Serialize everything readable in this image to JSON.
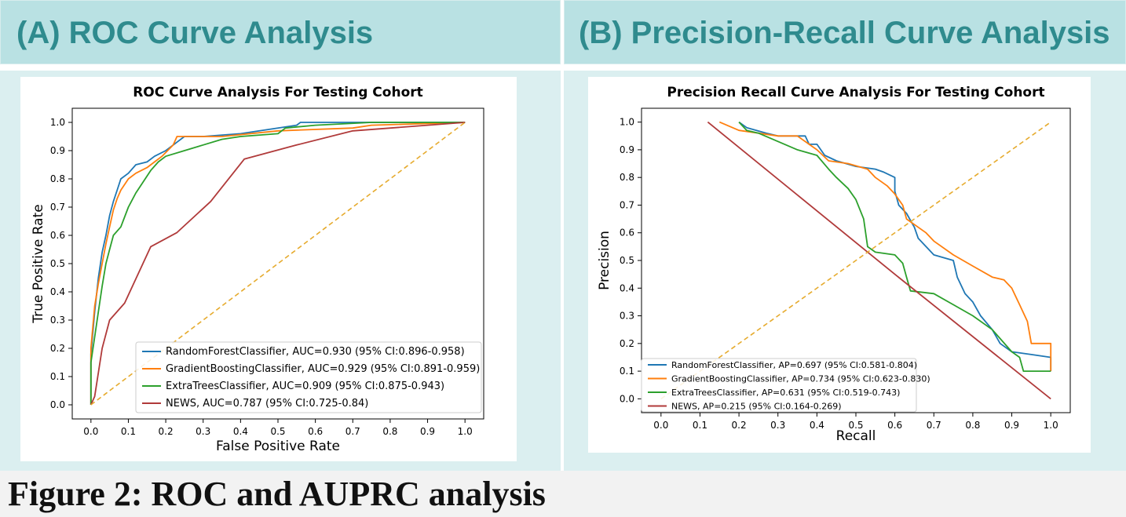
{
  "header": {
    "panel_a": "(A)  ROC Curve Analysis",
    "panel_b": "(B) Precision-Recall Curve Analysis"
  },
  "caption": "Figure 2: ROC and AUPRC analysis",
  "chart_data": [
    {
      "type": "line",
      "title": "ROC Curve Analysis For Testing Cohort",
      "xlabel": "False Positive Rate",
      "ylabel": "True Positive Rate",
      "xlim": [
        -0.05,
        1.05
      ],
      "ylim": [
        -0.05,
        1.05
      ],
      "xticks": [
        0.0,
        0.1,
        0.2,
        0.3,
        0.4,
        0.5,
        0.6,
        0.7,
        0.8,
        0.9,
        1.0
      ],
      "yticks": [
        0.0,
        0.1,
        0.2,
        0.3,
        0.4,
        0.5,
        0.6,
        0.7,
        0.8,
        0.9,
        1.0
      ],
      "tick_format": 1,
      "legend": "lower right",
      "legend_font": 13,
      "series": [
        {
          "name": "RandomForestClassifier, AUC=0.930 (95% CI:0.896-0.958)",
          "color": "#1f77b4",
          "points": [
            [
              0,
              0
            ],
            [
              0,
              0.18
            ],
            [
              0.01,
              0.33
            ],
            [
              0.02,
              0.45
            ],
            [
              0.03,
              0.54
            ],
            [
              0.04,
              0.6
            ],
            [
              0.05,
              0.67
            ],
            [
              0.06,
              0.72
            ],
            [
              0.07,
              0.76
            ],
            [
              0.08,
              0.8
            ],
            [
              0.1,
              0.82
            ],
            [
              0.12,
              0.85
            ],
            [
              0.15,
              0.86
            ],
            [
              0.17,
              0.88
            ],
            [
              0.2,
              0.9
            ],
            [
              0.23,
              0.93
            ],
            [
              0.25,
              0.95
            ],
            [
              0.3,
              0.95
            ],
            [
              0.4,
              0.96
            ],
            [
              0.55,
              0.99
            ],
            [
              0.56,
              1.0
            ],
            [
              1.0,
              1.0
            ]
          ]
        },
        {
          "name": "GradientBoostingClassifier, AUC=0.929 (95% CI:0.891-0.959)",
          "color": "#ff7f0e",
          "points": [
            [
              0,
              0
            ],
            [
              0,
              0.2
            ],
            [
              0.01,
              0.35
            ],
            [
              0.02,
              0.43
            ],
            [
              0.03,
              0.5
            ],
            [
              0.04,
              0.57
            ],
            [
              0.05,
              0.63
            ],
            [
              0.06,
              0.69
            ],
            [
              0.07,
              0.73
            ],
            [
              0.08,
              0.76
            ],
            [
              0.1,
              0.8
            ],
            [
              0.12,
              0.82
            ],
            [
              0.15,
              0.84
            ],
            [
              0.17,
              0.86
            ],
            [
              0.19,
              0.88
            ],
            [
              0.22,
              0.92
            ],
            [
              0.23,
              0.95
            ],
            [
              0.35,
              0.95
            ],
            [
              0.5,
              0.97
            ],
            [
              0.7,
              0.98
            ],
            [
              0.75,
              0.99
            ],
            [
              1.0,
              1.0
            ]
          ]
        },
        {
          "name": "ExtraTreesClassifier, AUC=0.909 (95% CI:0.875-0.943)",
          "color": "#2ca02c",
          "points": [
            [
              0,
              0
            ],
            [
              0,
              0.15
            ],
            [
              0.02,
              0.33
            ],
            [
              0.03,
              0.42
            ],
            [
              0.04,
              0.5
            ],
            [
              0.05,
              0.55
            ],
            [
              0.06,
              0.6
            ],
            [
              0.08,
              0.63
            ],
            [
              0.1,
              0.7
            ],
            [
              0.12,
              0.75
            ],
            [
              0.14,
              0.79
            ],
            [
              0.16,
              0.83
            ],
            [
              0.18,
              0.86
            ],
            [
              0.2,
              0.88
            ],
            [
              0.25,
              0.9
            ],
            [
              0.3,
              0.92
            ],
            [
              0.35,
              0.94
            ],
            [
              0.4,
              0.95
            ],
            [
              0.5,
              0.96
            ],
            [
              0.52,
              0.98
            ],
            [
              0.6,
              0.99
            ],
            [
              0.75,
              1.0
            ],
            [
              1.0,
              1.0
            ]
          ]
        },
        {
          "name": "NEWS, AUC=0.787 (95% CI:0.725-0.84)",
          "color": "#b03a3a",
          "points": [
            [
              0,
              0
            ],
            [
              0.01,
              0.03
            ],
            [
              0.03,
              0.2
            ],
            [
              0.05,
              0.3
            ],
            [
              0.09,
              0.36
            ],
            [
              0.16,
              0.56
            ],
            [
              0.23,
              0.61
            ],
            [
              0.32,
              0.72
            ],
            [
              0.41,
              0.87
            ],
            [
              0.55,
              0.92
            ],
            [
              0.7,
              0.97
            ],
            [
              1.0,
              1.0
            ]
          ]
        },
        {
          "name": "",
          "color": "#e6ab2e",
          "dashed": true,
          "points": [
            [
              0,
              0
            ],
            [
              1,
              1
            ]
          ]
        }
      ]
    },
    {
      "type": "line",
      "title": "Precision Recall Curve Analysis For Testing Cohort",
      "xlabel": "Recall",
      "ylabel": "Precision",
      "xlim": [
        -0.05,
        1.05
      ],
      "ylim": [
        -0.05,
        1.05
      ],
      "xticks": [
        0.0,
        0.1,
        0.2,
        0.3,
        0.4,
        0.5,
        0.6,
        0.7,
        0.8,
        0.9,
        1.0
      ],
      "yticks": [
        0.0,
        0.1,
        0.2,
        0.3,
        0.4,
        0.5,
        0.6,
        0.7,
        0.8,
        0.9,
        1.0
      ],
      "tick_format": 1,
      "legend": "lower left",
      "legend_font": 11,
      "series": [
        {
          "name": "RandomForestClassifier, AP=0.697 (95% CI:0.581-0.804)",
          "color": "#1f77b4",
          "points": [
            [
              0.2,
              1.0
            ],
            [
              0.22,
              0.98
            ],
            [
              0.27,
              0.96
            ],
            [
              0.3,
              0.95
            ],
            [
              0.37,
              0.95
            ],
            [
              0.38,
              0.92
            ],
            [
              0.4,
              0.92
            ],
            [
              0.42,
              0.88
            ],
            [
              0.45,
              0.86
            ],
            [
              0.5,
              0.84
            ],
            [
              0.55,
              0.83
            ],
            [
              0.57,
              0.82
            ],
            [
              0.6,
              0.8
            ],
            [
              0.6,
              0.75
            ],
            [
              0.61,
              0.7
            ],
            [
              0.63,
              0.67
            ],
            [
              0.65,
              0.62
            ],
            [
              0.66,
              0.58
            ],
            [
              0.7,
              0.52
            ],
            [
              0.75,
              0.5
            ],
            [
              0.76,
              0.44
            ],
            [
              0.78,
              0.38
            ],
            [
              0.8,
              0.35
            ],
            [
              0.82,
              0.3
            ],
            [
              0.85,
              0.25
            ],
            [
              0.87,
              0.2
            ],
            [
              0.9,
              0.17
            ],
            [
              0.95,
              0.16
            ],
            [
              1.0,
              0.15
            ],
            [
              1.0,
              0.1
            ]
          ]
        },
        {
          "name": "GradientBoostingClassifier, AP=0.734 (95% CI:0.623-0.830)",
          "color": "#ff7f0e",
          "points": [
            [
              0.15,
              1.0
            ],
            [
              0.2,
              0.97
            ],
            [
              0.25,
              0.96
            ],
            [
              0.3,
              0.95
            ],
            [
              0.35,
              0.95
            ],
            [
              0.38,
              0.92
            ],
            [
              0.4,
              0.9
            ],
            [
              0.43,
              0.86
            ],
            [
              0.48,
              0.85
            ],
            [
              0.53,
              0.83
            ],
            [
              0.55,
              0.8
            ],
            [
              0.58,
              0.77
            ],
            [
              0.6,
              0.74
            ],
            [
              0.62,
              0.7
            ],
            [
              0.63,
              0.65
            ],
            [
              0.66,
              0.62
            ],
            [
              0.68,
              0.6
            ],
            [
              0.7,
              0.57
            ],
            [
              0.75,
              0.52
            ],
            [
              0.8,
              0.48
            ],
            [
              0.85,
              0.44
            ],
            [
              0.88,
              0.43
            ],
            [
              0.9,
              0.4
            ],
            [
              0.92,
              0.34
            ],
            [
              0.94,
              0.28
            ],
            [
              0.95,
              0.2
            ],
            [
              1.0,
              0.2
            ],
            [
              1.0,
              0.1
            ]
          ]
        },
        {
          "name": "ExtraTreesClassifier, AP=0.631 (95% CI:0.519-0.743)",
          "color": "#2ca02c",
          "points": [
            [
              0.2,
              1.0
            ],
            [
              0.22,
              0.97
            ],
            [
              0.25,
              0.96
            ],
            [
              0.3,
              0.93
            ],
            [
              0.35,
              0.9
            ],
            [
              0.4,
              0.88
            ],
            [
              0.43,
              0.83
            ],
            [
              0.45,
              0.8
            ],
            [
              0.48,
              0.76
            ],
            [
              0.5,
              0.72
            ],
            [
              0.52,
              0.65
            ],
            [
              0.53,
              0.55
            ],
            [
              0.55,
              0.53
            ],
            [
              0.6,
              0.52
            ],
            [
              0.62,
              0.49
            ],
            [
              0.63,
              0.44
            ],
            [
              0.64,
              0.39
            ],
            [
              0.7,
              0.38
            ],
            [
              0.75,
              0.34
            ],
            [
              0.8,
              0.3
            ],
            [
              0.85,
              0.25
            ],
            [
              0.9,
              0.17
            ],
            [
              0.92,
              0.15
            ],
            [
              0.93,
              0.1
            ],
            [
              1.0,
              0.1
            ]
          ]
        },
        {
          "name": "NEWS, AP=0.215 (95% CI:0.164-0.269)",
          "color": "#b03a3a",
          "points": [
            [
              0.12,
              1.0
            ],
            [
              0.6,
              0.45
            ],
            [
              1.0,
              0.0
            ]
          ]
        },
        {
          "name": "",
          "color": "#e6ab2e",
          "dashed": true,
          "points": [
            [
              0,
              0
            ],
            [
              1,
              1
            ]
          ]
        }
      ]
    }
  ]
}
